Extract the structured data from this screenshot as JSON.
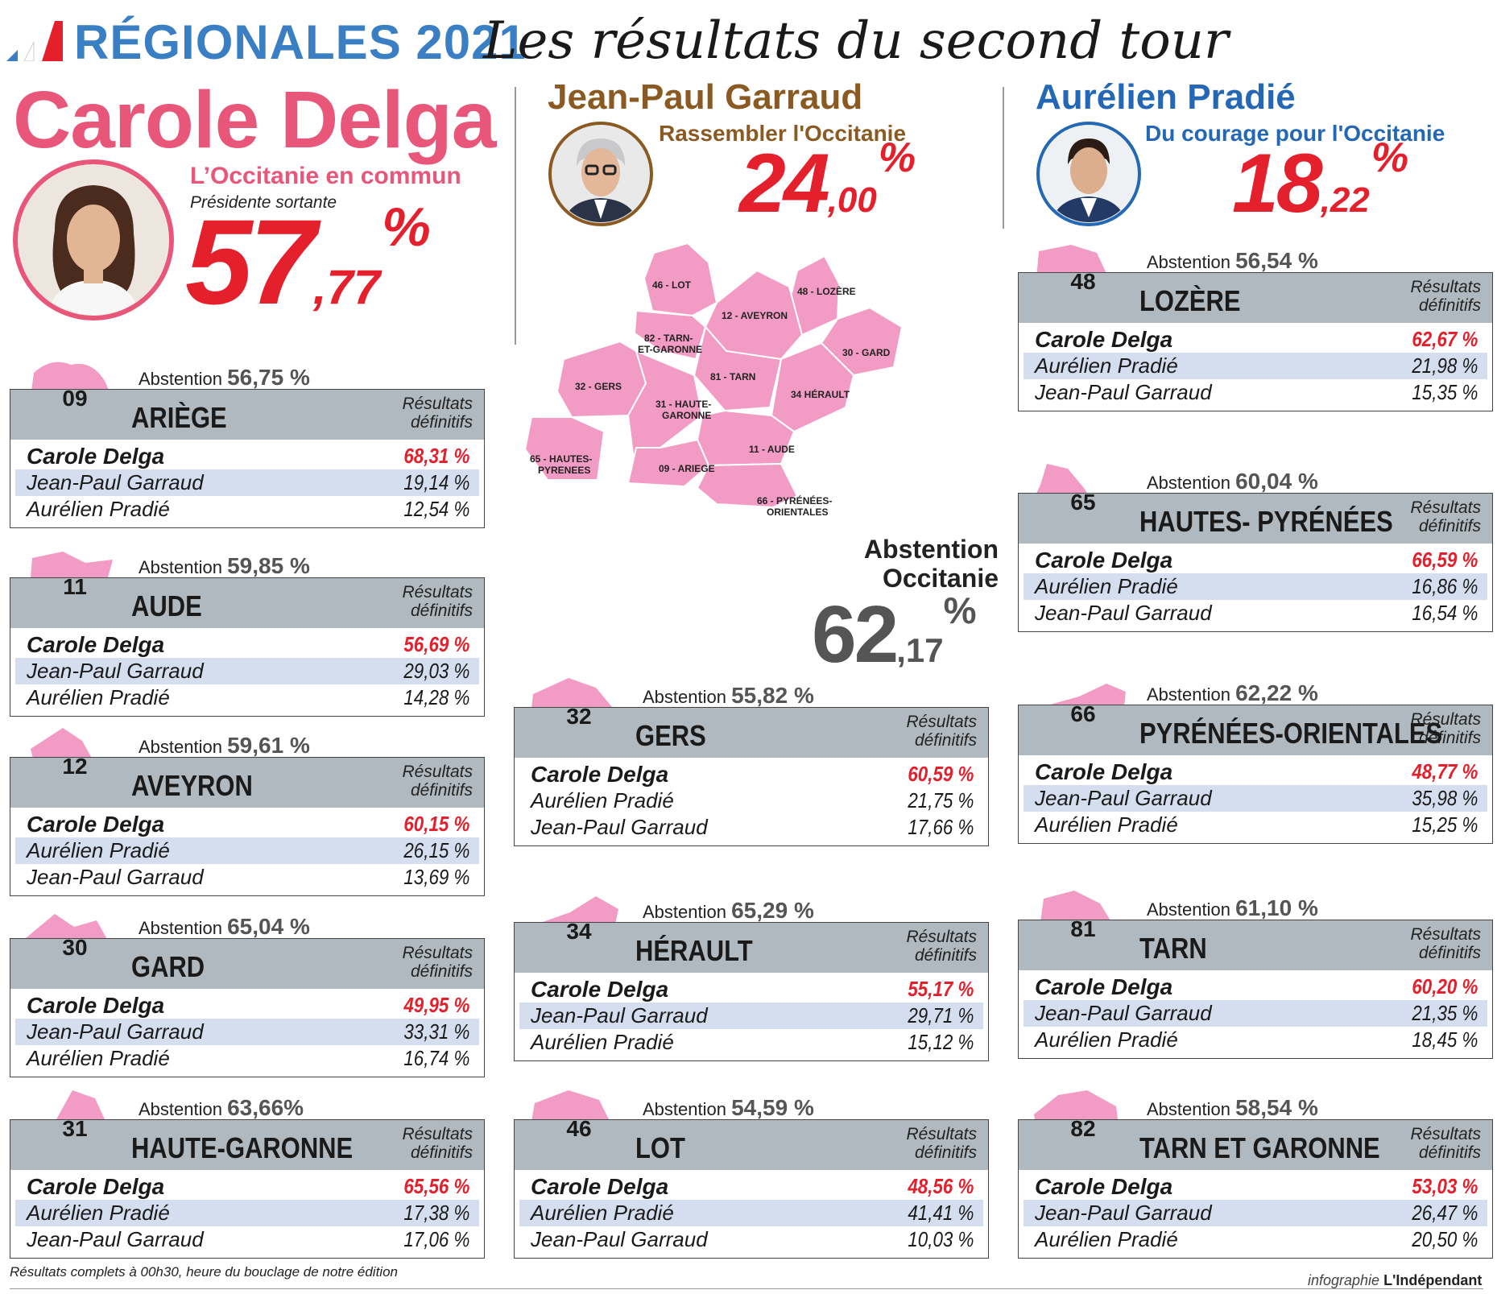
{
  "header": {
    "title": "RÉGIONALES 2021",
    "subtitle": "Les résultats du second tour"
  },
  "candidates": {
    "delga": {
      "name": "Carole Delga",
      "list": "L’Occitanie en commun",
      "role": "Présidente sortante",
      "pct_int": "57",
      "pct_dec": ",77",
      "pct_sym": "%"
    },
    "garraud": {
      "name": "Jean-Paul Garraud",
      "list": "Rassembler l'Occitanie",
      "pct_int": "24",
      "pct_dec": ",00",
      "pct_sym": "%"
    },
    "pradie": {
      "name": "Aurélien Pradié",
      "list": "Du courage pour l'Occitanie",
      "pct_int": "18",
      "pct_dec": ",22",
      "pct_sym": "%"
    }
  },
  "map": {
    "labels": {
      "lot": "46 - LOT",
      "lozere": "48 - LOZÈRE",
      "aveyron": "12 - AVEYRON",
      "tg1": "82 - TARN-",
      "tg2": "ET-GARONNE",
      "gard": "30 - GARD",
      "gers": "32 - GERS",
      "tarn": "81 - TARN",
      "hg1": "31 - HAUTE-",
      "hg2": "GARONNE",
      "herault": "34 HÉRAULT",
      "hp1": "65 - HAUTES-",
      "hp2": "PYRENEES",
      "aude": "11 - AUDE",
      "ariege": "09 - ARIEGE",
      "po1": "66 - PYRÉNÉES-",
      "po2": "ORIENTALES"
    }
  },
  "occitanie": {
    "label1": "Abstention",
    "label2": "Occitanie",
    "pct_int": "62",
    "pct_dec": ",17",
    "pct_sym": "%"
  },
  "common": {
    "abstention_label": "Abstention",
    "results_line1": "Résultats",
    "results_line2": "définitifs"
  },
  "departments": {
    "ariege": {
      "code": "09",
      "name": "ARIÈGE",
      "abstention": "56,75 %",
      "rows": [
        {
          "name": "Carole Delga",
          "value": "68,31 %"
        },
        {
          "name": "Jean-Paul Garraud",
          "value": "19,14 %"
        },
        {
          "name": "Aurélien Pradié",
          "value": "12,54 %"
        }
      ]
    },
    "aude": {
      "code": "11",
      "name": "AUDE",
      "abstention": "59,85 %",
      "rows": [
        {
          "name": "Carole Delga",
          "value": "56,69 %"
        },
        {
          "name": "Jean-Paul Garraud",
          "value": "29,03 %"
        },
        {
          "name": "Aurélien Pradié",
          "value": "14,28 %"
        }
      ]
    },
    "aveyron": {
      "code": "12",
      "name": "AVEYRON",
      "abstention": "59,61 %",
      "rows": [
        {
          "name": "Carole Delga",
          "value": "60,15 %"
        },
        {
          "name": "Aurélien Pradié",
          "value": "26,15 %"
        },
        {
          "name": "Jean-Paul Garraud",
          "value": "13,69 %"
        }
      ]
    },
    "gard": {
      "code": "30",
      "name": "GARD",
      "abstention": "65,04 %",
      "rows": [
        {
          "name": "Carole Delga",
          "value": "49,95 %"
        },
        {
          "name": "Jean-Paul Garraud",
          "value": "33,31 %"
        },
        {
          "name": "Aurélien Pradié",
          "value": "16,74 %"
        }
      ]
    },
    "haute_garonne": {
      "code": "31",
      "name": "HAUTE-GARONNE",
      "abstention": "63,66%",
      "rows": [
        {
          "name": "Carole Delga",
          "value": "65,56 %"
        },
        {
          "name": "Aurélien Pradié",
          "value": "17,38 %"
        },
        {
          "name": "Jean-Paul Garraud",
          "value": "17,06 %"
        }
      ]
    },
    "gers": {
      "code": "32",
      "name": "GERS",
      "abstention": "55,82 %",
      "rows": [
        {
          "name": "Carole Delga",
          "value": "60,59 %"
        },
        {
          "name": "Aurélien Pradié",
          "value": "21,75 %"
        },
        {
          "name": "Jean-Paul Garraud",
          "value": "17,66 %"
        }
      ]
    },
    "herault": {
      "code": "34",
      "name": "HÉRAULT",
      "abstention": "65,29 %",
      "rows": [
        {
          "name": "Carole Delga",
          "value": "55,17 %"
        },
        {
          "name": "Jean-Paul Garraud",
          "value": "29,71 %"
        },
        {
          "name": "Aurélien Pradié",
          "value": "15,12 %"
        }
      ]
    },
    "lot": {
      "code": "46",
      "name": "LOT",
      "abstention": "54,59 %",
      "rows": [
        {
          "name": "Carole Delga",
          "value": "48,56 %"
        },
        {
          "name": "Aurélien Pradié",
          "value": "41,41 %"
        },
        {
          "name": "Jean-Paul Garraud",
          "value": "10,03 %"
        }
      ]
    },
    "lozere": {
      "code": "48",
      "name": "LOZÈRE",
      "abstention": "56,54 %",
      "rows": [
        {
          "name": "Carole Delga",
          "value": "62,67 %"
        },
        {
          "name": "Aurélien Pradié",
          "value": "21,98 %"
        },
        {
          "name": "Jean-Paul Garraud",
          "value": "15,35 %"
        }
      ]
    },
    "hautes_pyrenees": {
      "code": "65",
      "name": "HAUTES- PYRÉNÉES",
      "abstention": "60,04 %",
      "rows": [
        {
          "name": "Carole Delga",
          "value": "66,59 %"
        },
        {
          "name": "Aurélien Pradié",
          "value": "16,86 %"
        },
        {
          "name": "Jean-Paul Garraud",
          "value": "16,54 %"
        }
      ]
    },
    "pyrenees_orientales": {
      "code": "66",
      "name": "PYRÉNÉES-ORIENTALES",
      "abstention": "62,22 %",
      "rows": [
        {
          "name": "Carole Delga",
          "value": "48,77 %"
        },
        {
          "name": "Jean-Paul Garraud",
          "value": "35,98 %"
        },
        {
          "name": "Aurélien Pradié",
          "value": "15,25 %"
        }
      ]
    },
    "tarn": {
      "code": "81",
      "name": "TARN",
      "abstention": "61,10 %",
      "rows": [
        {
          "name": "Carole Delga",
          "value": "60,20 %"
        },
        {
          "name": "Jean-Paul Garraud",
          "value": "21,35 %"
        },
        {
          "name": "Aurélien Pradié",
          "value": "18,45 %"
        }
      ]
    },
    "tarn_et_garonne": {
      "code": "82",
      "name": "TARN ET GARONNE",
      "abstention": "58,54 %",
      "rows": [
        {
          "name": "Carole Delga",
          "value": "53,03 %"
        },
        {
          "name": "Jean-Paul Garraud",
          "value": "26,47 %"
        },
        {
          "name": "Aurélien Pradié",
          "value": "20,50 %"
        }
      ]
    }
  },
  "footer": {
    "note": "Résultats complets à 00h30, heure du bouclage de notre édition",
    "credit_prefix": "infographie",
    "credit_brand": "L'Indépendant"
  },
  "colors": {
    "delga": "#e8577a",
    "garraud": "#8a5a22",
    "pradie": "#2367b5",
    "percent_red": "#e3202c",
    "region_pink": "#f29bc4",
    "band_grey": "#b0b9bf",
    "row_alt": "#d5deef"
  }
}
